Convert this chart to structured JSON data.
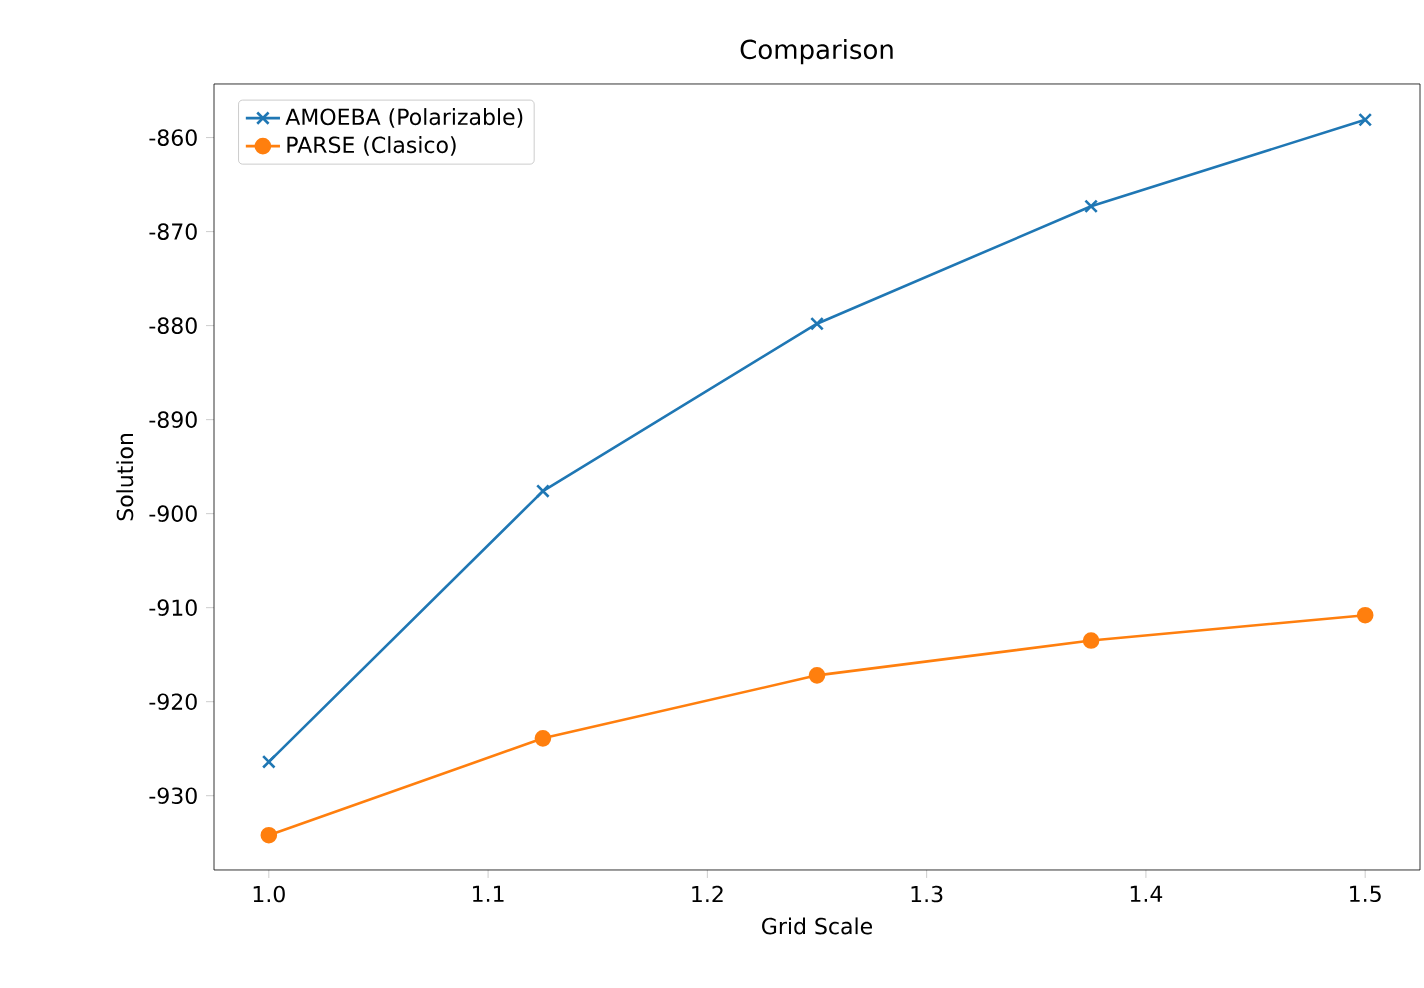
{
  "chart_data": {
    "type": "line",
    "title": "Comparison",
    "xlabel": "Grid Scale",
    "ylabel": "Solution",
    "x": [
      1.0,
      1.125,
      1.25,
      1.375,
      1.5
    ],
    "series": [
      {
        "name": "AMOEBA (Polarizable)",
        "color": "#1f77b4",
        "marker": "cross",
        "values": [
          -926.4,
          -897.6,
          -879.8,
          -867.3,
          -858.1
        ]
      },
      {
        "name": "PARSE (Clasico)",
        "color": "#ff7f0e",
        "marker": "circle",
        "values": [
          -934.2,
          -923.9,
          -917.2,
          -913.5,
          -910.8
        ]
      }
    ],
    "xlim": [
      0.975,
      1.525
    ],
    "ylim": [
      -937.9,
      -854.3
    ],
    "xticks": [
      {
        "value": 1,
        "label": "1.0"
      },
      {
        "value": 1.1,
        "label": "1.1"
      },
      {
        "value": 1.2,
        "label": "1.2"
      },
      {
        "value": 1.3,
        "label": "1.3"
      },
      {
        "value": 1.4,
        "label": "1.4"
      },
      {
        "value": 1.5,
        "label": "1.5"
      }
    ],
    "yticks": [
      -930,
      -920,
      -910,
      -900,
      -890,
      -880,
      -870,
      -860
    ],
    "grid": false,
    "legend": "top left",
    "line_style": "solid"
  }
}
